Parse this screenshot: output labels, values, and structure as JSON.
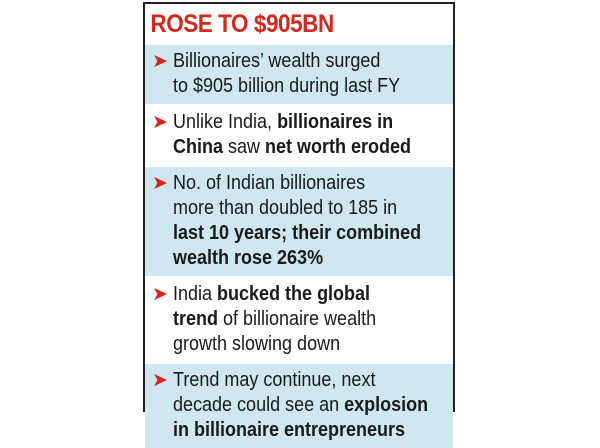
{
  "header": {
    "title": "ROSE TO $905BN"
  },
  "items": [
    {
      "lines": [
        [
          {
            "text": "Billionaires’ wealth surged",
            "bold": false
          }
        ],
        [
          {
            "text": "to $905 billion during last FY",
            "bold": false
          }
        ]
      ]
    },
    {
      "lines": [
        [
          {
            "text": "Unlike India, ",
            "bold": false
          },
          {
            "text": "billionaires in",
            "bold": true
          }
        ],
        [
          {
            "text": "China",
            "bold": true
          },
          {
            "text": " saw ",
            "bold": false
          },
          {
            "text": "net worth eroded",
            "bold": true
          }
        ]
      ]
    },
    {
      "lines": [
        [
          {
            "text": "No. of Indian billionaires",
            "bold": false
          }
        ],
        [
          {
            "text": "more than doubled to 185 in",
            "bold": false
          }
        ],
        [
          {
            "text": "last 10 years; their combined",
            "bold": true
          }
        ],
        [
          {
            "text": "wealth rose 263%",
            "bold": true
          }
        ]
      ]
    },
    {
      "lines": [
        [
          {
            "text": "India ",
            "bold": false
          },
          {
            "text": "bucked the global",
            "bold": true
          }
        ],
        [
          {
            "text": "trend",
            "bold": true
          },
          {
            "text": " of billionaire wealth",
            "bold": false
          }
        ],
        [
          {
            "text": "growth slowing down",
            "bold": false
          }
        ]
      ]
    },
    {
      "lines": [
        [
          {
            "text": "Trend may continue, next",
            "bold": false
          }
        ],
        [
          {
            "text": "decade could see an ",
            "bold": false
          },
          {
            "text": "explosion",
            "bold": true
          }
        ],
        [
          {
            "text": "in billionaire entrepreneurs",
            "bold": true
          }
        ]
      ]
    }
  ]
}
